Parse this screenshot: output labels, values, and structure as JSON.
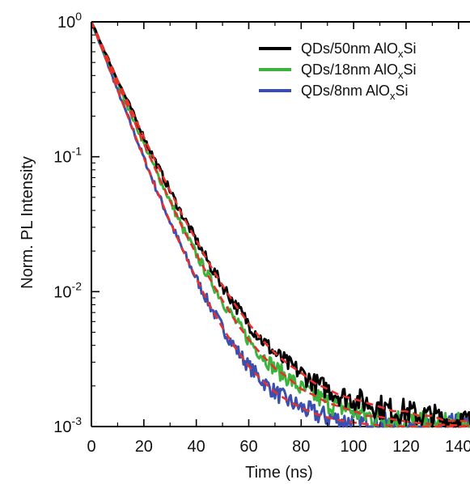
{
  "chart_data": {
    "type": "line",
    "xlabel": "Time (ns)",
    "ylabel": "Norm. PL Intensity",
    "xlim": [
      0,
      145
    ],
    "ylim": [
      0.001,
      1
    ],
    "yscale": "log",
    "x_ticks": [
      {
        "value": 0,
        "label": "0"
      },
      {
        "value": 20,
        "label": "20"
      },
      {
        "value": 40,
        "label": "40"
      },
      {
        "value": 60,
        "label": "60"
      },
      {
        "value": 80,
        "label": "80"
      },
      {
        "value": 100,
        "label": "100"
      },
      {
        "value": 120,
        "label": "120"
      },
      {
        "value": 140,
        "label": "140"
      }
    ],
    "y_ticks": [
      {
        "value": 1,
        "base": "10",
        "exp": "0"
      },
      {
        "value": 0.1,
        "base": "10",
        "exp": "-1"
      },
      {
        "value": 0.01,
        "base": "10",
        "exp": "-2"
      },
      {
        "value": 0.001,
        "base": "10",
        "exp": "-3"
      }
    ],
    "legend": {
      "position": "top-right",
      "entries": [
        {
          "name": "QDs/50nm AlO",
          "sub": "x",
          "suffix": "Si",
          "color": "#000000"
        },
        {
          "name": "QDs/18nm AlO",
          "sub": "x",
          "suffix": "Si",
          "color": "#3cb43c"
        },
        {
          "name": "QDs/8nm AlO",
          "sub": "x",
          "suffix": "Si",
          "color": "#3a4fb0"
        }
      ]
    },
    "series": [
      {
        "name": "QDs/50nm AlOxSi",
        "color": "#000000",
        "x": [
          0,
          5,
          10,
          15,
          20,
          25,
          30,
          35,
          40,
          45,
          50,
          55,
          60,
          65,
          70,
          75,
          80,
          85,
          90,
          95,
          100,
          105,
          110,
          115,
          120,
          125,
          130,
          135,
          140,
          145
        ],
        "y": [
          1,
          0.61,
          0.37,
          0.23,
          0.14,
          0.088,
          0.056,
          0.036,
          0.024,
          0.016,
          0.0111,
          0.0079,
          0.0058,
          0.0044,
          0.0035,
          0.0029,
          0.0025,
          0.0021,
          0.0019,
          0.0017,
          0.0016,
          0.0015,
          0.0014,
          0.0013,
          0.0013,
          0.0012,
          0.0012,
          0.0011,
          0.0011,
          0.0011
        ]
      },
      {
        "name": "QDs/18nm AlOxSi",
        "color": "#3cb43c",
        "x": [
          0,
          5,
          10,
          15,
          20,
          25,
          30,
          35,
          40,
          45,
          50,
          55,
          60,
          65,
          70,
          75,
          80,
          85,
          90,
          95,
          100,
          105,
          110,
          115,
          120,
          125,
          130,
          135,
          140,
          145
        ],
        "y": [
          1,
          0.59,
          0.35,
          0.21,
          0.125,
          0.076,
          0.047,
          0.029,
          0.019,
          0.0126,
          0.0086,
          0.006,
          0.0044,
          0.0034,
          0.0027,
          0.0023,
          0.0019,
          0.0017,
          0.0015,
          0.0014,
          0.0013,
          0.0012,
          0.00118,
          0.00113,
          0.00109,
          0.00106,
          0.00104,
          0.00103,
          0.00102,
          0.00101
        ]
      },
      {
        "name": "QDs/8nm AlOxSi",
        "color": "#3a4fb0",
        "x": [
          0,
          5,
          10,
          15,
          20,
          25,
          30,
          35,
          40,
          45,
          50,
          55,
          60,
          65,
          70,
          75,
          80,
          85,
          90,
          95,
          100,
          105,
          110,
          115,
          120,
          125,
          130,
          135,
          140,
          145
        ],
        "y": [
          1,
          0.56,
          0.31,
          0.175,
          0.098,
          0.056,
          0.033,
          0.02,
          0.0125,
          0.008,
          0.0054,
          0.0038,
          0.0028,
          0.0022,
          0.0018,
          0.00155,
          0.00138,
          0.00125,
          0.00117,
          0.00111,
          0.00107,
          0.00104,
          0.00102,
          0.00101,
          0.001,
          0.001,
          0.001,
          0.001,
          0.001,
          0.001
        ]
      }
    ],
    "fit_curves": {
      "color": "#e8302a",
      "style": "dashed"
    }
  }
}
